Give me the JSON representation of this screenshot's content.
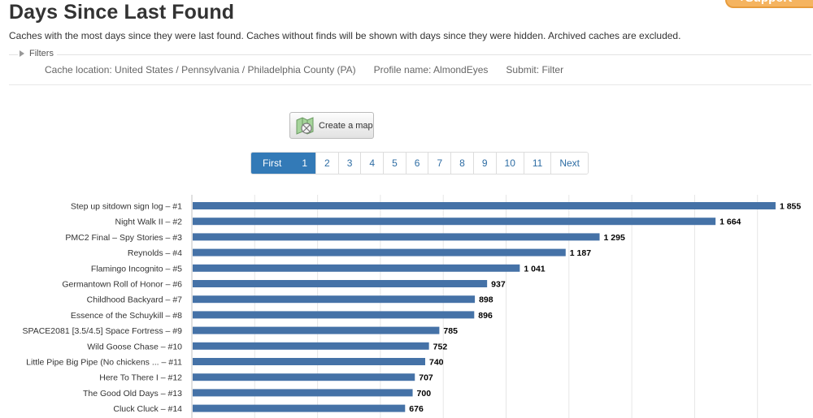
{
  "header": {
    "title": "Days Since Last Found",
    "support_label": "+Support",
    "description": "Caches with the most days since they were last found. Caches without finds will be shown with days since they were hidden. Archived caches are excluded."
  },
  "filters": {
    "legend": "Filters",
    "location": "Cache location: United States / Pennsylvania / Philadelphia County (PA)",
    "profile": "Profile name: AlmondEyes",
    "submit": "Submit: Filter"
  },
  "map_button": {
    "label": "Create a map",
    "icon": "map-icon"
  },
  "pagination": {
    "first": "First",
    "pages": [
      "1",
      "2",
      "3",
      "4",
      "5",
      "6",
      "7",
      "8",
      "9",
      "10",
      "11"
    ],
    "active": "1",
    "next": "Next"
  },
  "colors": {
    "bar": "#4572a7",
    "active_page": "#337ab7",
    "link": "#2e6da4"
  },
  "chart_data": {
    "type": "bar",
    "orientation": "horizontal",
    "categories": [
      "Step up sitdown sign log – #1",
      "Night Walk II – #2",
      "PMC2 Final – Spy Stories – #3",
      "Reynolds – #4",
      "Flamingo Incognito – #5",
      "Germantown Roll of Honor – #6",
      "Childhood Backyard – #7",
      "Essence of the Schuykill – #8",
      "SPACE2081 [3.5/4.5] Space Fortress – #9",
      "Wild Goose Chase – #10",
      "Little Pipe Big Pipe (No chickens ... – #11",
      "Here To There I – #12",
      "The Good Old Days – #13",
      "Cluck Cluck – #14"
    ],
    "values": [
      1855,
      1664,
      1295,
      1187,
      1041,
      937,
      898,
      896,
      785,
      752,
      740,
      707,
      700,
      676
    ],
    "value_labels": [
      "1 855",
      "1 664",
      "1 295",
      "1 187",
      "1 041",
      "937",
      "898",
      "896",
      "785",
      "752",
      "740",
      "707",
      "700",
      "676"
    ],
    "xlim": [
      0,
      2000
    ],
    "grid": true,
    "gridline_step": 200
  }
}
